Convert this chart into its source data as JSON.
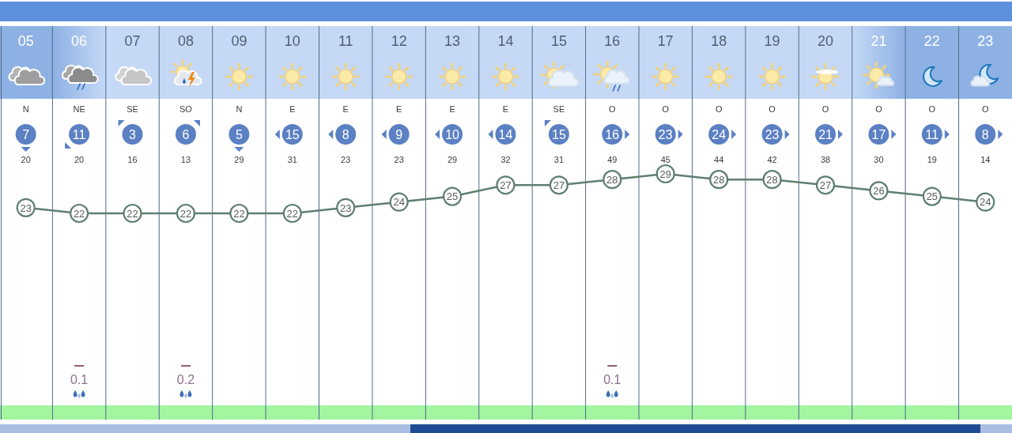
{
  "chart_data": {
    "type": "line",
    "categories": [
      "05",
      "06",
      "07",
      "08",
      "09",
      "10",
      "11",
      "12",
      "13",
      "14",
      "15",
      "16",
      "17",
      "18",
      "19",
      "20",
      "21",
      "22",
      "23"
    ],
    "series": [
      {
        "color": "#5f7f70",
        "values": [
          23,
          22,
          22,
          22,
          22,
          22,
          23,
          24,
          25,
          27,
          27,
          28,
          29,
          28,
          28,
          27,
          26,
          25,
          24
        ]
      }
    ],
    "data_labels": true,
    "marker": "circle",
    "line_style": "solid",
    "tick_labels": "x",
    "annotations": [
      "N",
      "NE",
      "SE",
      "SO",
      "N",
      "E",
      "E",
      "E",
      "E",
      "E",
      "SE",
      "O",
      "O",
      "O",
      "O",
      "O",
      "O",
      "O",
      "O",
      "7",
      "11",
      "3",
      "6",
      "5",
      "15",
      "8",
      "9",
      "10",
      "14",
      "15",
      "16",
      "23",
      "24",
      "23",
      "21",
      "17",
      "11",
      "8",
      "20",
      "20",
      "16",
      "13",
      "29",
      "31",
      "23",
      "23",
      "29",
      "32",
      "31",
      "49",
      "45",
      "44",
      "42",
      "38",
      "30",
      "19",
      "14",
      "0.1",
      "0.2",
      "0.1"
    ]
  }
}
